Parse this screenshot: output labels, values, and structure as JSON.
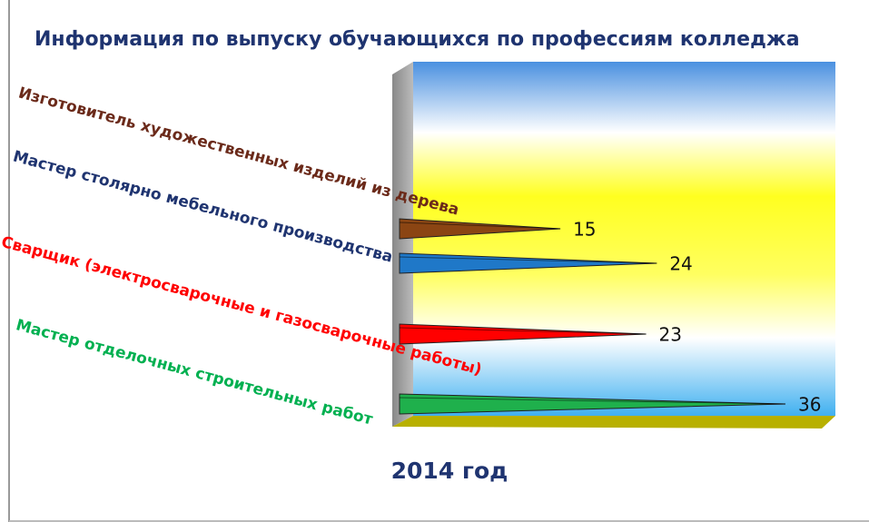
{
  "chart_data": {
    "type": "bar",
    "orientation": "horizontal",
    "title": "Информация по выпуску обучающихся по профессиям колледжа",
    "x_label": "2014 год",
    "categories": [
      "Изготовитель художественных изделий из дерева",
      "Мастер столярно мебельного производства",
      "Сварщик (электросварочные и газосварочные работы)",
      "Мастер отделочных строительных работ"
    ],
    "values": [
      15,
      24,
      23,
      36
    ],
    "colors": [
      "#8b4513",
      "#1f78c8",
      "#ff0000",
      "#1fb04c"
    ],
    "label_colors": [
      "#6b2a1a",
      "#1f3470",
      "#ff0000",
      "#00b050"
    ]
  }
}
